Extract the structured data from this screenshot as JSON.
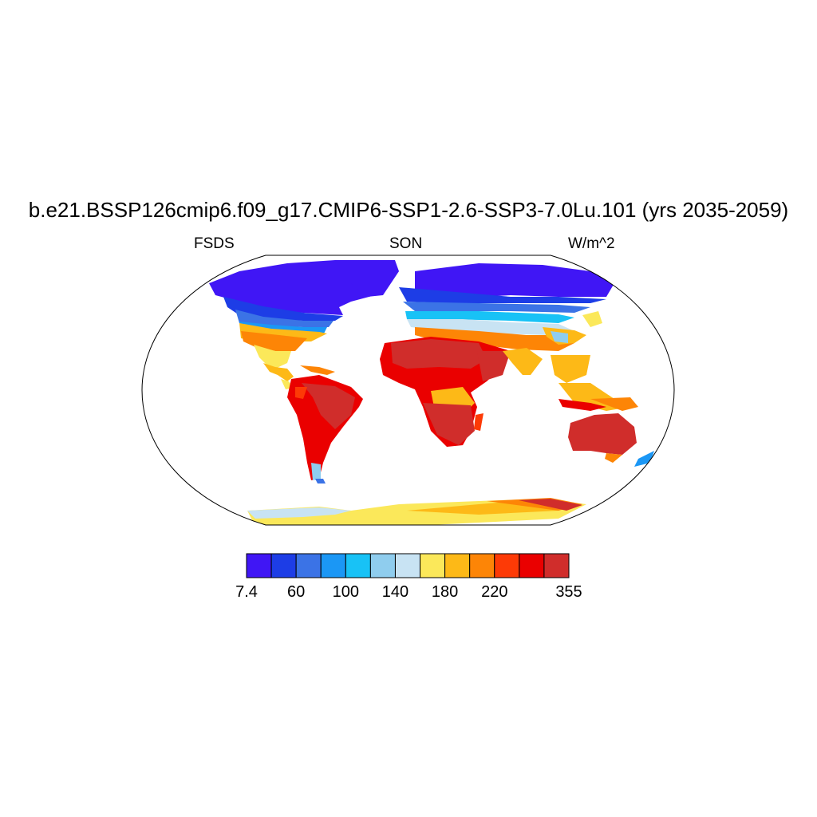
{
  "title": "b.e21.BSSP126cmip6.f09_g17.CMIP6-SSP1-2.6-SSP3-7.0Lu.101 (yrs 2035-2059)",
  "left_string": "FSDS",
  "center_string": "SON",
  "right_string": "W/m^2",
  "colorbar": {
    "colors": [
      "#4016f5",
      "#1d3de6",
      "#3b73e6",
      "#1b97f5",
      "#18c2f6",
      "#8fcdee",
      "#c8e3f3",
      "#fbe85a",
      "#fdb917",
      "#fd8506",
      "#fd3a06",
      "#ea0000",
      "#d02d2b"
    ],
    "labels": [
      "7.4",
      "60",
      "100",
      "140",
      "180",
      "220",
      "355"
    ]
  }
}
